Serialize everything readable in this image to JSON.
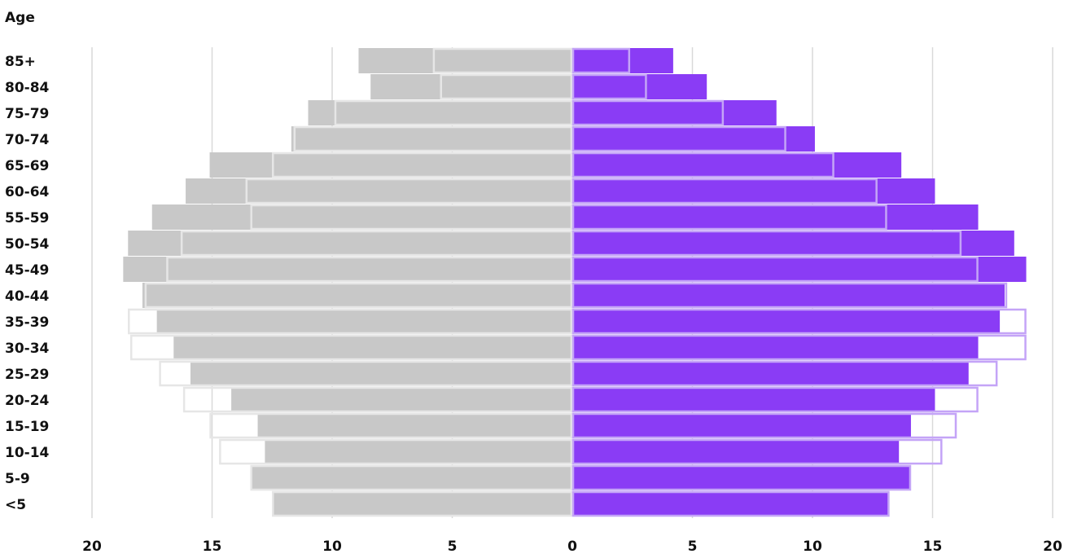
{
  "chart_data": {
    "type": "bar",
    "orientation": "horizontal",
    "layout": "population-pyramid",
    "ylabel": "Age",
    "categories": [
      "<5",
      "5-9",
      "10-14",
      "15-19",
      "20-24",
      "25-29",
      "30-34",
      "35-39",
      "40-44",
      "45-49",
      "50-54",
      "55-59",
      "60-64",
      "65-69",
      "70-74",
      "75-79",
      "80-84",
      "85+"
    ],
    "xlim": [
      -20,
      20
    ],
    "xticks": [
      -20,
      -15,
      -10,
      -5,
      0,
      5,
      10,
      15,
      20
    ],
    "xtick_labels": [
      "20",
      "15",
      "10",
      "5",
      "0",
      "5",
      "10",
      "15",
      "20"
    ],
    "grid": true,
    "series": [
      {
        "side": "left",
        "layer": "filled",
        "values": [
          12.5,
          13.4,
          12.8,
          13.1,
          14.2,
          15.9,
          16.6,
          17.3,
          17.9,
          18.7,
          18.5,
          17.5,
          16.1,
          15.1,
          11.7,
          11.0,
          8.4,
          8.9
        ]
      },
      {
        "side": "left",
        "layer": "outline",
        "values": [
          12.5,
          13.4,
          14.7,
          15.1,
          16.2,
          17.2,
          18.4,
          18.5,
          17.8,
          16.9,
          16.3,
          13.4,
          13.6,
          12.5,
          11.6,
          9.9,
          5.5,
          5.8
        ]
      },
      {
        "side": "right",
        "layer": "filled",
        "values": [
          13.2,
          14.1,
          13.6,
          14.1,
          15.1,
          16.5,
          16.9,
          17.8,
          18.0,
          18.9,
          18.4,
          16.9,
          15.1,
          13.7,
          10.1,
          8.5,
          5.6,
          4.2
        ]
      },
      {
        "side": "right",
        "layer": "outline",
        "values": [
          13.2,
          14.1,
          15.4,
          16.0,
          16.9,
          17.7,
          18.9,
          18.9,
          18.1,
          16.9,
          16.2,
          13.1,
          12.7,
          10.9,
          8.9,
          6.3,
          3.1,
          2.4
        ]
      }
    ],
    "colors": {
      "left_fill": "#c8c8c8",
      "left_outline": "#e6e6e6",
      "right_fill": "#8a3cf5",
      "right_outline": "#c4a4f7",
      "grid": "#d9d9d9"
    }
  }
}
